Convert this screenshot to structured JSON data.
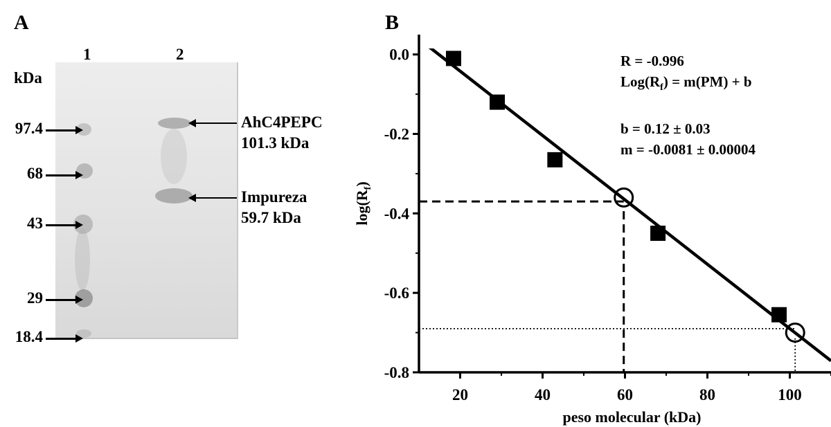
{
  "panel_a": {
    "letter": "A",
    "lane_labels": [
      "1",
      "2"
    ],
    "unit_label": "kDa",
    "markers": [
      {
        "label": "97.4",
        "value": 97.4
      },
      {
        "label": "68",
        "value": 68
      },
      {
        "label": "43",
        "value": 43
      },
      {
        "label": "29",
        "value": 29
      },
      {
        "label": "18.4",
        "value": 18.4
      }
    ],
    "annotations": [
      {
        "name": "AhC4PEPC",
        "mass": "101.3 kDa"
      },
      {
        "name": "Impureza",
        "mass": "59.7 kDa"
      }
    ],
    "gel_color": "#e6e6e6"
  },
  "panel_b": {
    "letter": "B",
    "equations": {
      "r": "R  = -0.996",
      "model": "Log(R",
      "model_sub": "f",
      "model_rest": ") = m(PM) + b",
      "b": "b = 0.12 ± 0.03",
      "m": "m = -0.0081 ± 0.00004"
    }
  },
  "chart_data": {
    "type": "scatter",
    "xlabel": "peso molecular (kDa)",
    "ylabel": "log(R",
    "ylabel_sub": "f",
    "ylabel_rest": ")",
    "xlim": [
      10,
      110
    ],
    "ylim": [
      -0.8,
      0.05
    ],
    "xticks": [
      20,
      40,
      60,
      80,
      100
    ],
    "yticks": [
      0.0,
      -0.2,
      -0.4,
      -0.6,
      -0.8
    ],
    "ytick_labels": [
      "0.0",
      "-0.2",
      "-0.4",
      "-0.6",
      "-0.8"
    ],
    "series": [
      {
        "marker": "square-filled",
        "points": [
          [
            18.4,
            -0.01
          ],
          [
            29,
            -0.12
          ],
          [
            43,
            -0.265
          ],
          [
            68,
            -0.45
          ],
          [
            97.4,
            -0.655
          ]
        ]
      },
      {
        "marker": "circle-open",
        "points": [
          [
            59.7,
            -0.36
          ],
          [
            101.3,
            -0.7
          ]
        ]
      }
    ],
    "fit_line": {
      "m": -0.0081,
      "b": 0.12
    },
    "reference_lines": [
      {
        "style": "dashed",
        "x": 59.7,
        "y": -0.37
      },
      {
        "style": "dotted",
        "x": 101.3,
        "y": -0.69
      }
    ],
    "grid": false
  }
}
